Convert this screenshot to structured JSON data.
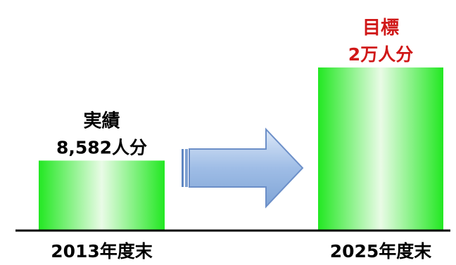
{
  "chart_data": {
    "type": "bar",
    "categories": [
      "2013年度末",
      "2025年度末"
    ],
    "values": [
      8582,
      20000
    ],
    "annotations": [
      {
        "heading": "実績",
        "value_text": "8,582人分",
        "color": "#000000"
      },
      {
        "heading": "目標",
        "value_text": "2万人分",
        "color": "#d01818"
      }
    ],
    "ylim": [
      0,
      20000
    ],
    "grid": false,
    "legend": "none",
    "bar_color": "#2ef02e",
    "arrow_color": "#a9c4e8"
  }
}
